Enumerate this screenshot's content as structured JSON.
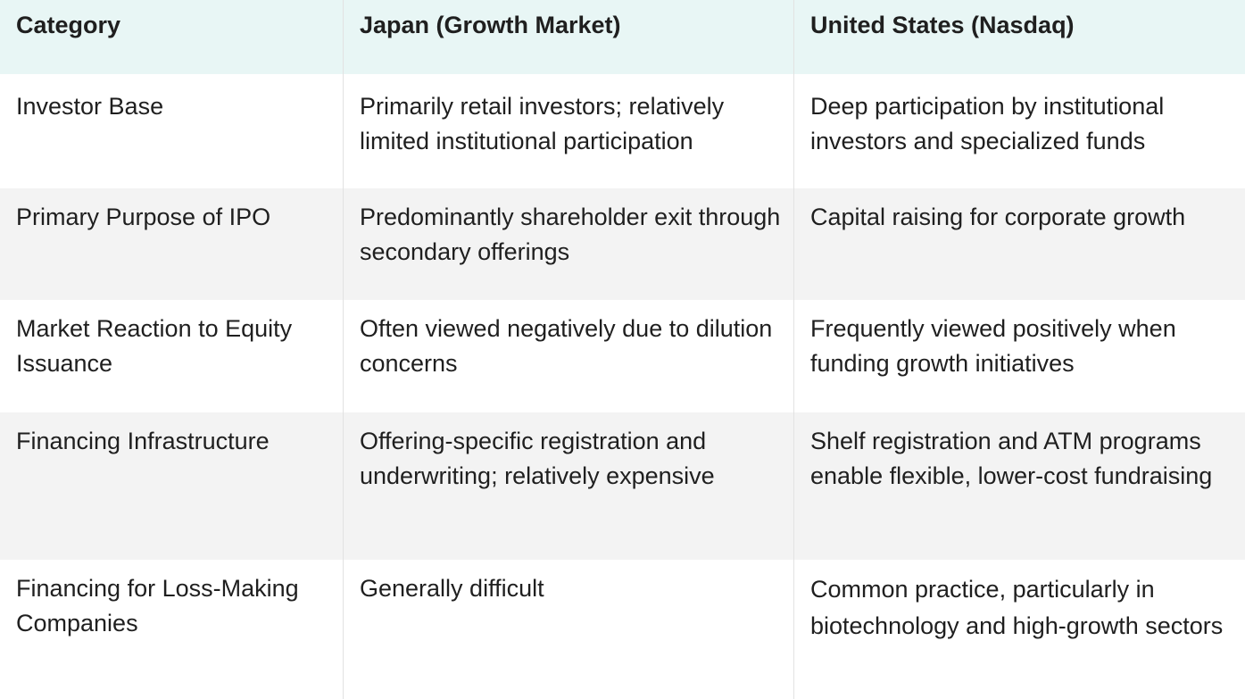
{
  "header": {
    "category": "Category",
    "japan": "Japan (Growth Market)",
    "us": "United States (Nasdaq)"
  },
  "rows": [
    {
      "category": "Investor Base",
      "japan": "Primarily retail investors; relatively limited institutional participation",
      "us": "Deep participation by institutional investors and specialized funds"
    },
    {
      "category": "Primary Purpose of IPO",
      "japan": "Predominantly shareholder exit through secondary offerings",
      "us": "Capital raising for corporate growth"
    },
    {
      "category": "Market Reaction to Equity Issuance",
      "japan": "Often viewed negatively due to dilution concerns",
      "us": "Frequently viewed positively when funding growth initiatives"
    },
    {
      "category": "Financing Infrastructure",
      "japan": "Offering-specific registration and underwriting; relatively expensive",
      "us": "Shelf registration and ATM programs enable flexible, lower-cost fundraising"
    },
    {
      "category": "Financing for Loss-Making Companies",
      "japan": "Generally difficult",
      "us": "Common practice, particularly in biotechnology and high-growth sectors"
    }
  ],
  "colors": {
    "header_bg": "#e8f6f5",
    "stripe_bg": "#f3f3f3",
    "text": "#1f1f1f"
  }
}
